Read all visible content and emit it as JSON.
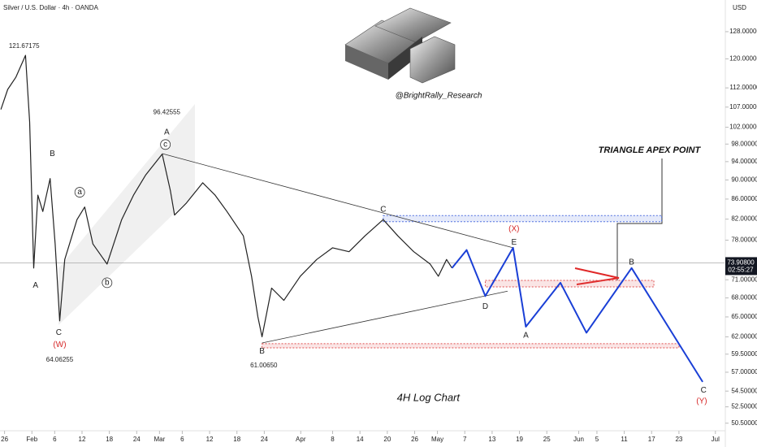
{
  "chart_data": {
    "type": "line",
    "title": "Silver / U.S. Dollar · 4h · OANDA",
    "currency": "USD",
    "watermark": "@BrightRally_Research",
    "log_scale": true,
    "xlim": [
      -1,
      158
    ],
    "ylim": [
      49.6,
      138
    ],
    "xticks": [
      {
        "value": 0,
        "label": "26"
      },
      {
        "value": 6,
        "label": "Feb"
      },
      {
        "value": 11,
        "label": "6"
      },
      {
        "value": 17,
        "label": "12"
      },
      {
        "value": 23,
        "label": "18"
      },
      {
        "value": 29,
        "label": "24"
      },
      {
        "value": 34,
        "label": "Mar"
      },
      {
        "value": 39,
        "label": "6"
      },
      {
        "value": 45,
        "label": "12"
      },
      {
        "value": 51,
        "label": "18"
      },
      {
        "value": 57,
        "label": "24"
      },
      {
        "value": 65,
        "label": "Apr"
      },
      {
        "value": 72,
        "label": "8"
      },
      {
        "value": 78,
        "label": "14"
      },
      {
        "value": 84,
        "label": "20"
      },
      {
        "value": 90,
        "label": "26"
      },
      {
        "value": 95,
        "label": "May"
      },
      {
        "value": 101,
        "label": "7"
      },
      {
        "value": 107,
        "label": "13"
      },
      {
        "value": 113,
        "label": "19"
      },
      {
        "value": 119,
        "label": "25"
      },
      {
        "value": 126,
        "label": "Jun"
      },
      {
        "value": 130,
        "label": "5"
      },
      {
        "value": 136,
        "label": "11"
      },
      {
        "value": 142,
        "label": "17"
      },
      {
        "value": 148,
        "label": "23"
      },
      {
        "value": 156,
        "label": "Jul"
      }
    ],
    "yticks": [
      {
        "value": 128,
        "label": "128.00000"
      },
      {
        "value": 120,
        "label": "120.00000"
      },
      {
        "value": 112,
        "label": "112.00000"
      },
      {
        "value": 107,
        "label": "107.00000"
      },
      {
        "value": 102,
        "label": "102.00000"
      },
      {
        "value": 98,
        "label": "98.00000"
      },
      {
        "value": 94,
        "label": "94.00000"
      },
      {
        "value": 90,
        "label": "90.00000"
      },
      {
        "value": 86,
        "label": "86.00000"
      },
      {
        "value": 82,
        "label": "82.00000"
      },
      {
        "value": 78,
        "label": "78.00000"
      },
      {
        "value": 71,
        "label": "71.00000"
      },
      {
        "value": 68,
        "label": "68.00000"
      },
      {
        "value": 65,
        "label": "65.00000"
      },
      {
        "value": 62,
        "label": "62.00000"
      },
      {
        "value": 59.5,
        "label": "59.50000"
      },
      {
        "value": 57,
        "label": "57.00000"
      },
      {
        "value": 54.5,
        "label": "54.50000"
      },
      {
        "value": 52.5,
        "label": "52.50000"
      },
      {
        "value": 50.5,
        "label": "50.50000"
      }
    ],
    "last_price": {
      "value": 73.908,
      "label": "73.90800",
      "countdown": "02:55:27"
    },
    "series": [
      {
        "color": "#222222",
        "x": [
          -0.8,
          0.7,
          2.5,
          4.6,
          5.5,
          6.4,
          7.3,
          8.4,
          10.0,
          11.1,
          12.1,
          13.2,
          15.9,
          17.6,
          19.4,
          22.5,
          25.7,
          28.3,
          31.0,
          34.6,
          36.4,
          37.3,
          39.9,
          43.5,
          46.2,
          48.8,
          52.4,
          54.2,
          55.6,
          56.5,
          58.6,
          61.3,
          64.9,
          68.5,
          72.0,
          75.6,
          79.1,
          83.1,
          86.3,
          89.8,
          93.4,
          95.2,
          97.0,
          98.2
        ],
        "values": [
          106.4,
          111.6,
          114.9,
          121.0,
          103.3,
          73.0,
          86.8,
          83.5,
          90.3,
          77.3,
          64.4,
          74.5,
          81.9,
          84.4,
          77.3,
          73.7,
          81.9,
          86.8,
          91.1,
          95.7,
          87.7,
          82.8,
          85.2,
          89.4,
          86.8,
          83.5,
          78.8,
          71.6,
          65.0,
          62.0,
          69.6,
          67.6,
          71.6,
          74.5,
          76.6,
          75.9,
          78.8,
          81.9,
          78.8,
          75.9,
          73.7,
          71.6,
          74.5,
          73.0
        ]
      },
      {
        "color": "#1a3fd6",
        "x": [
          98.2,
          101.4,
          105.5,
          111.6,
          114.4,
          122.0,
          127.7,
          137.6,
          153.2
        ],
        "values": [
          73.0,
          76.2,
          68.3,
          76.6,
          63.5,
          70.5,
          62.6,
          73.0,
          55.7
        ]
      }
    ],
    "trendlines": [
      {
        "color": "#333333",
        "x": [
          34.6,
          111.6
        ],
        "values": [
          95.8,
          76.6
        ]
      },
      {
        "color": "#333333",
        "x": [
          56.5,
          110.4
        ],
        "values": [
          61.1,
          69.1
        ]
      }
    ],
    "zones": [
      {
        "color": "#e05050",
        "x": [
          105.5,
          142.5
        ],
        "range": [
          69.8,
          70.9
        ]
      },
      {
        "color": "#5070e0",
        "x": [
          83.1,
          144.2
        ],
        "range": [
          81.5,
          82.7
        ]
      },
      {
        "color": "#e05050",
        "x": [
          56.5,
          148
        ],
        "range": [
          60.4,
          61.0
        ]
      }
    ],
    "annotations": [
      {
        "text": "121.67175",
        "x": 4.3,
        "y": 123.6,
        "color": "#222222"
      },
      {
        "text": "B",
        "x": 10.5,
        "y": 95.7,
        "color": "#222222"
      },
      {
        "text": "A",
        "x": 6.8,
        "y": 70.0,
        "color": "#222222"
      },
      {
        "text": "C",
        "x": 11.9,
        "y": 62.6,
        "color": "#222222"
      },
      {
        "text": "(W)",
        "x": 12.1,
        "y": 60.8,
        "color": "#d62828"
      },
      {
        "text": "64.06255",
        "x": 12.1,
        "y": 58.7,
        "color": "#222222"
      },
      {
        "text": "a",
        "x": 16.5,
        "y": 87.4,
        "color": "#222222",
        "circled": true
      },
      {
        "text": "b",
        "x": 22.5,
        "y": 70.5,
        "color": "#222222",
        "circled": true
      },
      {
        "text": "c",
        "x": 35.3,
        "y": 97.9,
        "color": "#222222",
        "circled": true
      },
      {
        "text": "A",
        "x": 35.6,
        "y": 100.8,
        "color": "#222222"
      },
      {
        "text": "96.42555",
        "x": 35.6,
        "y": 105.6,
        "color": "#222222"
      },
      {
        "text": "B",
        "x": 56.5,
        "y": 59.9,
        "color": "#222222"
      },
      {
        "text": "61.00650",
        "x": 56.9,
        "y": 57.9,
        "color": "#222222"
      },
      {
        "text": "C",
        "x": 83.1,
        "y": 83.9,
        "color": "#222222"
      },
      {
        "text": "(X)",
        "x": 111.8,
        "y": 80.1,
        "color": "#d62828"
      },
      {
        "text": "E",
        "x": 111.8,
        "y": 77.6,
        "color": "#222222"
      },
      {
        "text": "D",
        "x": 105.5,
        "y": 66.6,
        "color": "#222222"
      },
      {
        "text": "A",
        "x": 114.4,
        "y": 62.2,
        "color": "#222222"
      },
      {
        "text": "B",
        "x": 137.6,
        "y": 74.0,
        "color": "#222222"
      },
      {
        "text": "C",
        "x": 153.4,
        "y": 54.6,
        "color": "#222222"
      },
      {
        "text": "(Y)",
        "x": 153.0,
        "y": 53.2,
        "color": "#d62828"
      },
      {
        "text": "TRIANGLE APEX POINT",
        "x": 141.5,
        "y": 96.5,
        "color": "#111111",
        "style": "bold-italic"
      },
      {
        "text": "4H Log Chart",
        "x": 93.0,
        "y": 53.6,
        "color": "#111111",
        "style": "italic"
      }
    ]
  }
}
